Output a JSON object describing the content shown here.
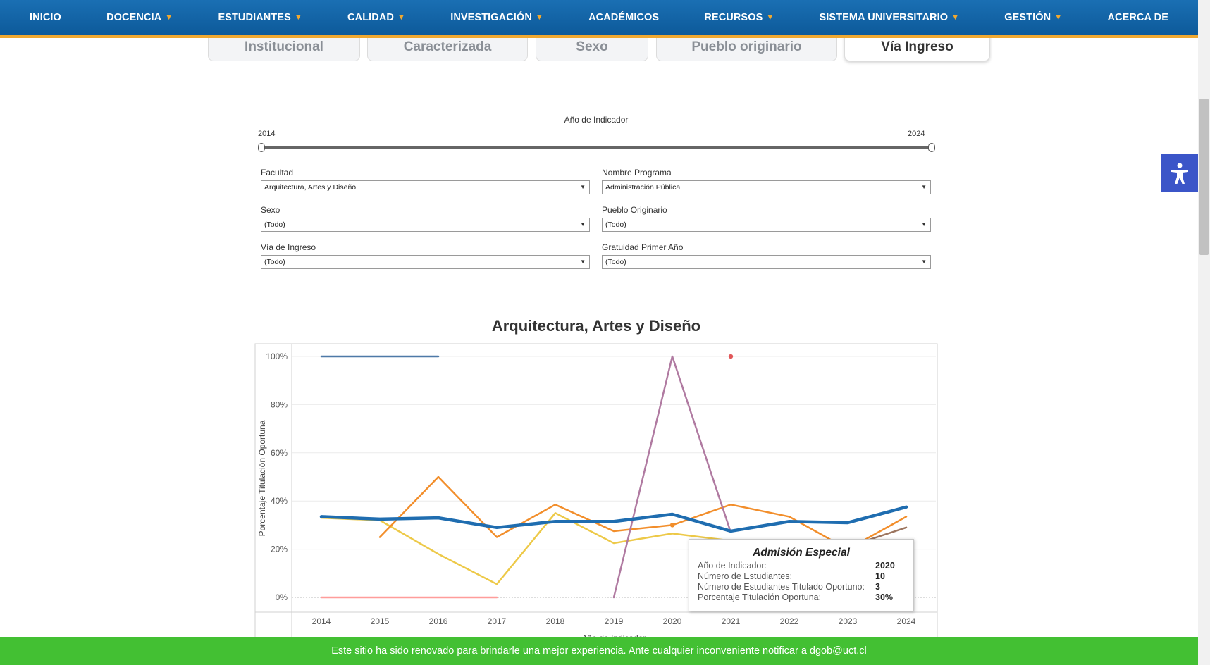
{
  "nav": {
    "items": [
      {
        "label": "INICIO",
        "dropdown": false
      },
      {
        "label": "DOCENCIA",
        "dropdown": true
      },
      {
        "label": "ESTUDIANTES",
        "dropdown": true
      },
      {
        "label": "CALIDAD",
        "dropdown": true
      },
      {
        "label": "INVESTIGACIÓN",
        "dropdown": true
      },
      {
        "label": "ACADÉMICOS",
        "dropdown": false
      },
      {
        "label": "RECURSOS",
        "dropdown": true
      },
      {
        "label": "SISTEMA UNIVERSITARIO",
        "dropdown": true
      },
      {
        "label": "GESTIÓN",
        "dropdown": true
      },
      {
        "label": "ACERCA DE",
        "dropdown": false
      }
    ],
    "colors": {
      "background": "#0d5a9a",
      "accent": "#f0a830"
    }
  },
  "tabs": [
    {
      "label": "Institucional",
      "active": false
    },
    {
      "label": "Caracterizada",
      "active": false
    },
    {
      "label": "Sexo",
      "active": false
    },
    {
      "label": "Pueblo originario",
      "active": false
    },
    {
      "label": "Vía Ingreso",
      "active": true
    }
  ],
  "slider": {
    "title": "Año de Indicador",
    "min_label": "2014",
    "max_label": "2024",
    "range": [
      2014,
      2024
    ]
  },
  "filters": {
    "facultad": {
      "label": "Facultad",
      "value": "Arquitectura, Artes y Diseño"
    },
    "programa": {
      "label": "Nombre Programa",
      "value": "Administración Pública"
    },
    "sexo": {
      "label": "Sexo",
      "value": "(Todo)"
    },
    "pueblo": {
      "label": "Pueblo Originario",
      "value": "(Todo)"
    },
    "via": {
      "label": "Vía de Ingreso",
      "value": "(Todo)"
    },
    "gratuidad": {
      "label": "Gratuidad Primer Año",
      "value": "(Todo)"
    }
  },
  "chart_data": {
    "type": "line",
    "title": "Arquitectura, Artes y Diseño",
    "ylabel": "Porcentaje Titulación Oportuna",
    "xlabel": "Año de Indicador",
    "x": [
      2014,
      2015,
      2016,
      2017,
      2018,
      2019,
      2020,
      2021,
      2022,
      2023,
      2024
    ],
    "ylim": [
      0,
      100
    ],
    "yticks": [
      "0%",
      "20%",
      "40%",
      "60%",
      "80%",
      "100%"
    ],
    "grid": true,
    "series": [
      {
        "color": "#4e79a7",
        "width": 2.5,
        "values": [
          100,
          100,
          100,
          null,
          null,
          null,
          null,
          null,
          null,
          null,
          null
        ]
      },
      {
        "color": "#ff9d9a",
        "width": 2.5,
        "values": [
          0,
          0,
          0,
          0,
          null,
          null,
          null,
          null,
          null,
          null,
          null
        ]
      },
      {
        "color": "#edc948",
        "width": 2.5,
        "values": [
          33,
          32,
          18,
          5.5,
          35,
          22.5,
          26.5,
          23.5,
          null,
          null,
          null
        ]
      },
      {
        "color": "#f28e2b",
        "width": 2.5,
        "values": [
          null,
          25,
          50,
          25,
          38.5,
          27.5,
          30,
          38.5,
          33.5,
          20,
          33.5
        ]
      },
      {
        "color": "#b07aa1",
        "width": 2.5,
        "values": [
          null,
          null,
          null,
          null,
          null,
          0,
          100,
          27,
          null,
          null,
          null
        ]
      },
      {
        "color": "#9c755f",
        "width": 2.5,
        "values": [
          null,
          null,
          null,
          null,
          null,
          null,
          null,
          null,
          null,
          21,
          29
        ]
      },
      {
        "color": "#1f6db0",
        "width": 4.5,
        "values": [
          33.5,
          32.5,
          33,
          29,
          31.5,
          31.5,
          34.5,
          27.5,
          31.5,
          31,
          37.5
        ]
      }
    ],
    "points": [
      {
        "x": 2021,
        "y": 100,
        "color": "#e15759"
      },
      {
        "x": 2020,
        "y": 30,
        "color": "#f28e2b"
      }
    ]
  },
  "tooltip": {
    "title": "Admisión Especial",
    "rows": [
      {
        "key": "Año de Indicador:",
        "value": "2020"
      },
      {
        "key": "Número de Estudiantes:",
        "value": "10"
      },
      {
        "key": "Número de Estudiantes Titulado Oportuno:",
        "value": "3"
      },
      {
        "key": "Porcentaje Titulación Oportuna:",
        "value": "30%"
      }
    ]
  },
  "accessibility": {
    "icon": "accessibility-icon",
    "color": "#3b55c8"
  },
  "banner": {
    "text": "Este sitio ha sido renovado para brindarle una mejor experiencia. Ante cualquier inconveniente notificar a dgob@uct.cl",
    "color": "#43c033"
  }
}
